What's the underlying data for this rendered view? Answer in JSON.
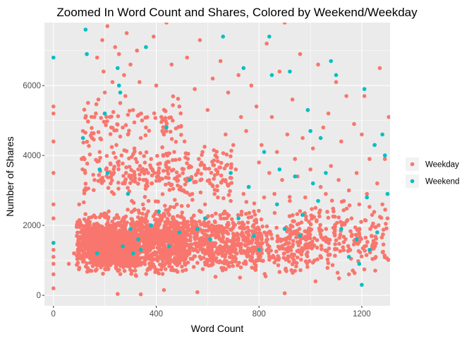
{
  "chart_data": {
    "type": "scatter",
    "title": "Zoomed In Word Count and Shares, Colored by Weekend/Weekday",
    "xlabel": "Word Count",
    "ylabel": "Number of Shares",
    "xlim": [
      -35,
      1310
    ],
    "ylim": [
      -300,
      7800
    ],
    "x_ticks": [
      0,
      400,
      800,
      1200
    ],
    "y_ticks": [
      0,
      2000,
      4000,
      6000
    ],
    "x_tick_labels": [
      "0",
      "400",
      "800",
      "1200"
    ],
    "y_tick_labels": [
      "0",
      "2000",
      "4000",
      "6000"
    ],
    "grid": true,
    "legend_position": "right",
    "series": [
      {
        "name": "Weekday",
        "color": "#F8766D",
        "points": [
          [
            0,
            5400
          ],
          [
            0,
            5200
          ],
          [
            0,
            4400
          ],
          [
            0,
            3500
          ],
          [
            0,
            2600
          ],
          [
            0,
            2200
          ],
          [
            0,
            1500
          ],
          [
            0,
            1300
          ],
          [
            0,
            1100
          ],
          [
            0,
            900
          ],
          [
            0,
            600
          ],
          [
            0,
            200
          ],
          [
            60,
            900
          ],
          [
            80,
            1200
          ],
          [
            100,
            2600
          ],
          [
            105,
            1800
          ],
          [
            110,
            3900
          ],
          [
            115,
            4700
          ],
          [
            120,
            3000
          ],
          [
            125,
            1500
          ],
          [
            140,
            700
          ],
          [
            150,
            4500
          ],
          [
            155,
            1400
          ],
          [
            160,
            3300
          ],
          [
            165,
            5200
          ],
          [
            170,
            6800
          ],
          [
            175,
            5600
          ],
          [
            180,
            4100
          ],
          [
            185,
            800
          ],
          [
            190,
            7300
          ],
          [
            195,
            6400
          ],
          [
            200,
            5800
          ],
          [
            205,
            3600
          ],
          [
            210,
            7700
          ],
          [
            215,
            2400
          ],
          [
            220,
            5100
          ],
          [
            225,
            4800
          ],
          [
            230,
            6100
          ],
          [
            235,
            2900
          ],
          [
            240,
            7100
          ],
          [
            245,
            4300
          ],
          [
            250,
            3800
          ],
          [
            255,
            6900
          ],
          [
            260,
            5500
          ],
          [
            265,
            4000
          ],
          [
            270,
            3200
          ],
          [
            275,
            6300
          ],
          [
            280,
            5700
          ],
          [
            285,
            7500
          ],
          [
            290,
            4600
          ],
          [
            295,
            3400
          ],
          [
            300,
            6600
          ],
          [
            305,
            2700
          ],
          [
            310,
            5300
          ],
          [
            315,
            4200
          ],
          [
            320,
            3900
          ],
          [
            325,
            7000
          ],
          [
            330,
            3600
          ],
          [
            335,
            6100
          ],
          [
            340,
            4500
          ],
          [
            345,
            5000
          ],
          [
            350,
            3300
          ],
          [
            360,
            4800
          ],
          [
            370,
            2700
          ],
          [
            380,
            3900
          ],
          [
            390,
            7400
          ],
          [
            400,
            6000
          ],
          [
            410,
            3500
          ],
          [
            420,
            5100
          ],
          [
            430,
            4600
          ],
          [
            440,
            7800
          ],
          [
            450,
            3200
          ],
          [
            460,
            6600
          ],
          [
            470,
            4100
          ],
          [
            480,
            2600
          ],
          [
            490,
            5400
          ],
          [
            500,
            3000
          ],
          [
            510,
            4400
          ],
          [
            520,
            6800
          ],
          [
            530,
            3700
          ],
          [
            540,
            2900
          ],
          [
            550,
            5900
          ],
          [
            560,
            3500
          ],
          [
            570,
            7300
          ],
          [
            580,
            4100
          ],
          [
            590,
            2600
          ],
          [
            600,
            5300
          ],
          [
            610,
            3200
          ],
          [
            620,
            6200
          ],
          [
            630,
            4000
          ],
          [
            640,
            2800
          ],
          [
            650,
            6700
          ],
          [
            660,
            3300
          ],
          [
            670,
            4600
          ],
          [
            680,
            5800
          ],
          [
            690,
            2700
          ],
          [
            700,
            4300
          ],
          [
            710,
            3600
          ],
          [
            720,
            6300
          ],
          [
            730,
            5100
          ],
          [
            740,
            2900
          ],
          [
            750,
            4700
          ],
          [
            760,
            3100
          ],
          [
            770,
            6000
          ],
          [
            780,
            2400
          ],
          [
            790,
            5400
          ],
          [
            800,
            3800
          ],
          [
            810,
            4300
          ],
          [
            820,
            2800
          ],
          [
            830,
            7200
          ],
          [
            840,
            3500
          ],
          [
            850,
            5100
          ],
          [
            860,
            2900
          ],
          [
            870,
            4100
          ],
          [
            880,
            6400
          ],
          [
            890,
            3300
          ],
          [
            900,
            7800
          ],
          [
            910,
            4600
          ],
          [
            920,
            2700
          ],
          [
            930,
            5600
          ],
          [
            940,
            3900
          ],
          [
            950,
            3400
          ],
          [
            960,
            6900
          ],
          [
            970,
            4500
          ],
          [
            980,
            2800
          ],
          [
            990,
            5300
          ],
          [
            1000,
            3600
          ],
          [
            1010,
            4200
          ],
          [
            1020,
            2500
          ],
          [
            1030,
            6600
          ],
          [
            1040,
            3100
          ],
          [
            1050,
            4800
          ],
          [
            1060,
            2900
          ],
          [
            1070,
            5200
          ],
          [
            1080,
            3700
          ],
          [
            1090,
            2400
          ],
          [
            1100,
            6100
          ],
          [
            1110,
            3300
          ],
          [
            1120,
            4400
          ],
          [
            1130,
            2700
          ],
          [
            1140,
            5700
          ],
          [
            1150,
            3000
          ],
          [
            1160,
            2200
          ],
          [
            1170,
            4900
          ],
          [
            1180,
            3500
          ],
          [
            1190,
            2600
          ],
          [
            1200,
            4600
          ],
          [
            1210,
            5700
          ],
          [
            1220,
            2900
          ],
          [
            1230,
            3900
          ],
          [
            1240,
            2300
          ],
          [
            1250,
            4300
          ],
          [
            1260,
            3200
          ],
          [
            1270,
            6500
          ],
          [
            1280,
            2600
          ],
          [
            1290,
            3900
          ],
          [
            1300,
            2200
          ],
          [
            1305,
            5100
          ],
          [
            430,
            150
          ],
          [
            560,
            90
          ],
          [
            900,
            60
          ],
          [
            1020,
            400
          ],
          [
            1150,
            600
          ],
          [
            340,
            30
          ],
          [
            250,
            40
          ]
        ],
        "cloud": [
          {
            "x": [
              90,
              520
            ],
            "y": [
              400,
              2600
            ],
            "n": 1150
          },
          {
            "x": [
              150,
              330
            ],
            "y": [
              500,
              2200
            ],
            "n": 650
          },
          {
            "x": [
              300,
              800
            ],
            "y": [
              350,
              2900
            ],
            "n": 500
          },
          {
            "x": [
              500,
              1000
            ],
            "y": [
              300,
              2500
            ],
            "n": 400
          },
          {
            "x": [
              900,
              1305
            ],
            "y": [
              300,
              3000
            ],
            "n": 240
          },
          {
            "x": [
              110,
              700
            ],
            "y": [
              2500,
              4500
            ],
            "n": 260
          },
          {
            "x": [
              120,
              500
            ],
            "y": [
              4000,
              5800
            ],
            "n": 80
          }
        ]
      },
      {
        "name": "Weekend",
        "color": "#00BFC4",
        "points": [
          [
            0,
            6800
          ],
          [
            0,
            1500
          ],
          [
            115,
            4500
          ],
          [
            125,
            7600
          ],
          [
            130,
            6900
          ],
          [
            170,
            1200
          ],
          [
            180,
            3600
          ],
          [
            200,
            5200
          ],
          [
            210,
            3500
          ],
          [
            250,
            6500
          ],
          [
            255,
            6000
          ],
          [
            260,
            5800
          ],
          [
            270,
            1400
          ],
          [
            290,
            2900
          ],
          [
            300,
            1900
          ],
          [
            310,
            1200
          ],
          [
            330,
            1600
          ],
          [
            340,
            1300
          ],
          [
            360,
            7100
          ],
          [
            380,
            2000
          ],
          [
            410,
            2400
          ],
          [
            440,
            4800
          ],
          [
            450,
            1400
          ],
          [
            490,
            1800
          ],
          [
            530,
            3300
          ],
          [
            560,
            1900
          ],
          [
            590,
            2200
          ],
          [
            610,
            1600
          ],
          [
            660,
            7400
          ],
          [
            690,
            3500
          ],
          [
            720,
            2200
          ],
          [
            740,
            6500
          ],
          [
            760,
            3100
          ],
          [
            780,
            1700
          ],
          [
            800,
            1300
          ],
          [
            820,
            4100
          ],
          [
            840,
            7400
          ],
          [
            850,
            6300
          ],
          [
            870,
            2600
          ],
          [
            880,
            3600
          ],
          [
            900,
            1900
          ],
          [
            920,
            6400
          ],
          [
            940,
            3400
          ],
          [
            960,
            1700
          ],
          [
            970,
            2300
          ],
          [
            990,
            5300
          ],
          [
            1000,
            4700
          ],
          [
            1010,
            3200
          ],
          [
            1030,
            2700
          ],
          [
            1040,
            4500
          ],
          [
            1060,
            3500
          ],
          [
            1080,
            6700
          ],
          [
            1100,
            6300
          ],
          [
            1120,
            1900
          ],
          [
            1150,
            1100
          ],
          [
            1180,
            1600
          ],
          [
            1190,
            900
          ],
          [
            1200,
            300
          ],
          [
            1210,
            5900
          ],
          [
            1220,
            2800
          ],
          [
            1230,
            1300
          ],
          [
            1250,
            4300
          ],
          [
            1260,
            1800
          ],
          [
            1280,
            4600
          ],
          [
            1290,
            4000
          ],
          [
            1300,
            2900
          ]
        ]
      }
    ]
  }
}
